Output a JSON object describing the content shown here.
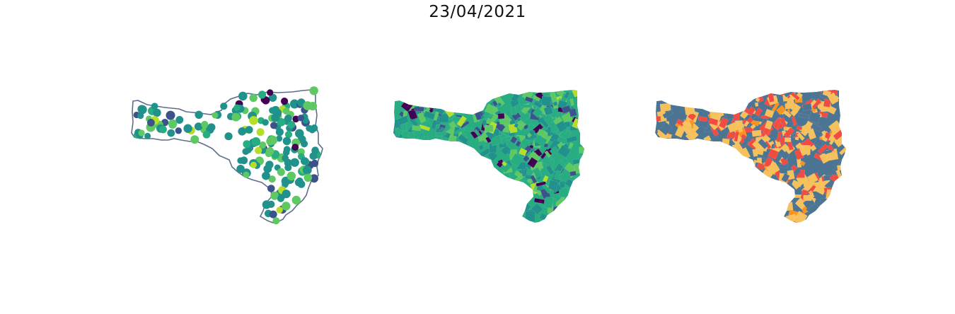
{
  "title": "23/04/2021",
  "colors": {
    "outline": "#5c6f8a",
    "viridis": [
      "#440154",
      "#3b528b",
      "#21918c",
      "#27ad81",
      "#5ec962",
      "#b5de2b",
      "#fde725"
    ],
    "categorical": [
      "#f6c15b",
      "#f24c42",
      "#4c7493",
      "#f9921f"
    ]
  },
  "maps": [
    {
      "id": "points",
      "kind": "proportional-points",
      "colormap": "viridis"
    },
    {
      "id": "choropleth",
      "kind": "choropleth",
      "colormap": "viridis"
    },
    {
      "id": "categorical",
      "kind": "categorical-choropleth",
      "colormap": "categorical"
    }
  ]
}
